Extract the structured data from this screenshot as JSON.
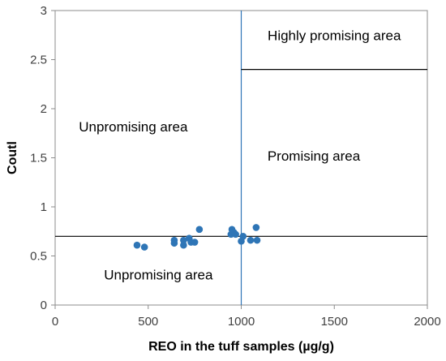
{
  "chart_data": {
    "type": "scatter",
    "title": "",
    "xlabel": "REO in the tuff samples (µg/g)",
    "ylabel": "Coutl",
    "xlim": [
      0,
      2000
    ],
    "ylim": [
      0,
      3
    ],
    "xticks": [
      0,
      500,
      1000,
      1500,
      2000
    ],
    "yticks": [
      0,
      0.5,
      1,
      1.5,
      2,
      2.5,
      3
    ],
    "xtick_labels": [
      "0",
      "500",
      "1000",
      "1500",
      "2000"
    ],
    "ytick_labels": [
      "0",
      "0.5",
      "1",
      "1.5",
      "2",
      "2.5",
      "3"
    ],
    "grid": false,
    "legend": "none",
    "series": [
      {
        "color": "#2e75b6",
        "points": [
          {
            "x": 440,
            "y": 0.61
          },
          {
            "x": 480,
            "y": 0.59
          },
          {
            "x": 640,
            "y": 0.66
          },
          {
            "x": 640,
            "y": 0.63
          },
          {
            "x": 690,
            "y": 0.66
          },
          {
            "x": 690,
            "y": 0.61
          },
          {
            "x": 720,
            "y": 0.68
          },
          {
            "x": 730,
            "y": 0.64
          },
          {
            "x": 750,
            "y": 0.64
          },
          {
            "x": 775,
            "y": 0.77
          },
          {
            "x": 945,
            "y": 0.72
          },
          {
            "x": 950,
            "y": 0.77
          },
          {
            "x": 960,
            "y": 0.74
          },
          {
            "x": 970,
            "y": 0.72
          },
          {
            "x": 1000,
            "y": 0.65
          },
          {
            "x": 1010,
            "y": 0.7
          },
          {
            "x": 1050,
            "y": 0.66
          },
          {
            "x": 1080,
            "y": 0.79
          },
          {
            "x": 1085,
            "y": 0.66
          }
        ]
      }
    ],
    "reference_lines": [
      {
        "orientation": "horizontal",
        "value": 0.7,
        "from": 0,
        "to": 2000,
        "color": "#000000"
      },
      {
        "orientation": "vertical",
        "value": 1000,
        "from": 0,
        "to": 3,
        "color": "#2e75b6"
      },
      {
        "orientation": "horizontal",
        "value": 2.4,
        "from": 1000,
        "to": 2000,
        "color": "#000000"
      }
    ],
    "annotations": [
      {
        "text": "Highly promising area",
        "x": 1500,
        "y": 2.7
      },
      {
        "text": "Unpromising area",
        "x": 420,
        "y": 1.77
      },
      {
        "text": "Promising area",
        "x": 1390,
        "y": 1.47
      },
      {
        "text": "Unpromising area",
        "x": 555,
        "y": 0.26
      }
    ]
  }
}
